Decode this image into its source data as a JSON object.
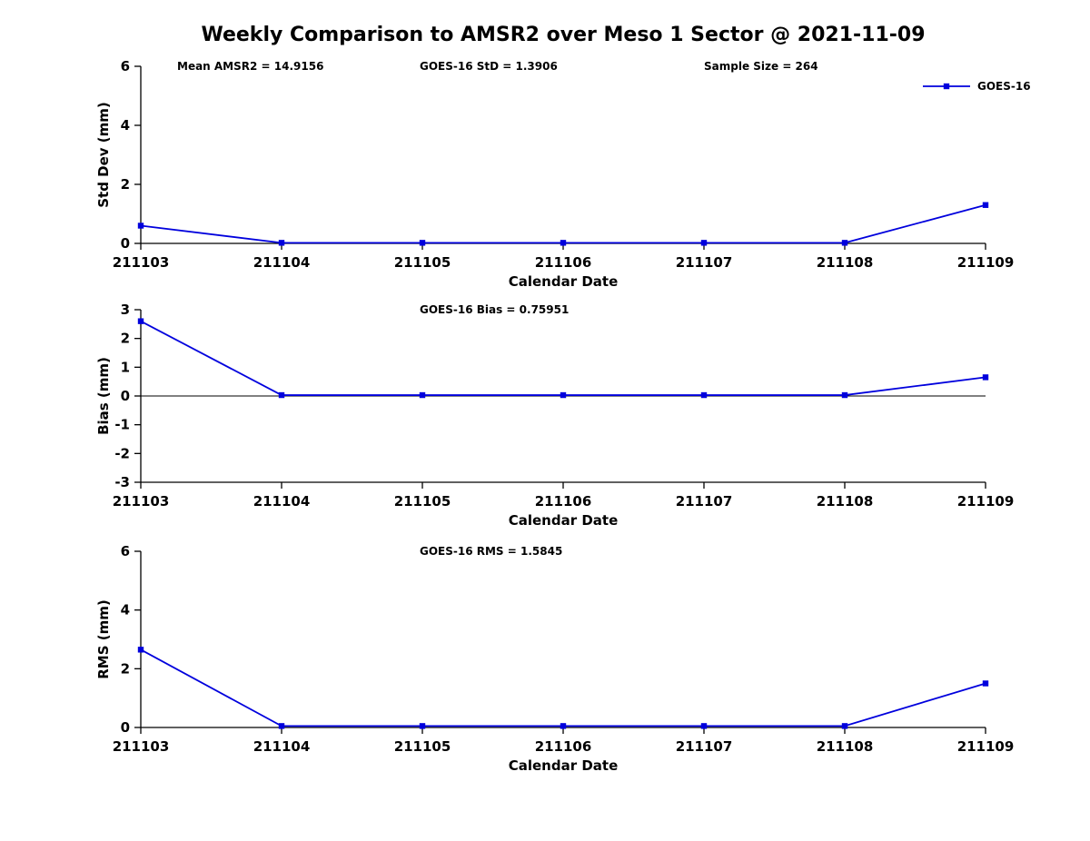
{
  "title": "Weekly Comparison to AMSR2 over Meso 1 Sector @ 2021-11-09",
  "colors": {
    "series": "#0000dd",
    "axis": "#000000"
  },
  "chart_data": [
    {
      "type": "line",
      "name": "stddev",
      "x": [
        "211103",
        "211104",
        "211105",
        "211106",
        "211107",
        "211108",
        "211109"
      ],
      "series": [
        {
          "name": "GOES-16",
          "values": [
            0.6,
            0.02,
            0.02,
            0.02,
            0.02,
            0.02,
            1.3
          ]
        }
      ],
      "xlabel": "Calendar Date",
      "ylabel": "Std Dev (mm)",
      "ylim": [
        0,
        6
      ],
      "yticks": [
        0,
        2,
        4,
        6
      ],
      "annotations": [
        "Mean AMSR2 = 14.9156",
        "GOES-16 StD = 1.3906",
        "Sample Size = 264"
      ],
      "legend": [
        "GOES-16"
      ],
      "legend_position": "top-right",
      "zero_line": false,
      "grid": false
    },
    {
      "type": "line",
      "name": "bias",
      "x": [
        "211103",
        "211104",
        "211105",
        "211106",
        "211107",
        "211108",
        "211109"
      ],
      "series": [
        {
          "name": "GOES-16",
          "values": [
            2.6,
            0.03,
            0.03,
            0.03,
            0.03,
            0.03,
            0.65
          ]
        }
      ],
      "xlabel": "Calendar Date",
      "ylabel": "Bias (mm)",
      "ylim": [
        -3,
        3
      ],
      "yticks": [
        -3,
        -2,
        -1,
        0,
        1,
        2,
        3
      ],
      "annotations": [
        "GOES-16 Bias  = 0.75951"
      ],
      "legend": [],
      "zero_line": true,
      "grid": false
    },
    {
      "type": "line",
      "name": "rms",
      "x": [
        "211103",
        "211104",
        "211105",
        "211106",
        "211107",
        "211108",
        "211109"
      ],
      "series": [
        {
          "name": "GOES-16",
          "values": [
            2.65,
            0.05,
            0.05,
            0.05,
            0.05,
            0.05,
            1.5
          ]
        }
      ],
      "xlabel": "Calendar Date",
      "ylabel": "RMS (mm)",
      "ylim": [
        0,
        6
      ],
      "yticks": [
        0,
        2,
        4,
        6
      ],
      "annotations": [
        "GOES-16 RMS = 1.5845"
      ],
      "legend": [],
      "zero_line": false,
      "grid": false
    }
  ]
}
